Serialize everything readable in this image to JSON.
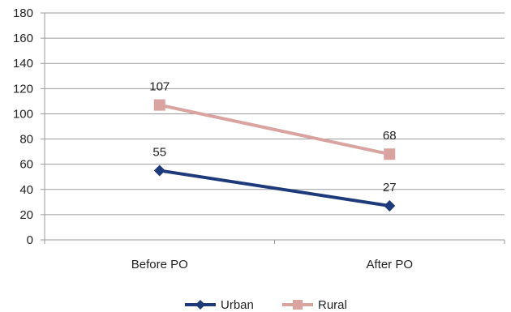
{
  "chart_data": {
    "type": "line",
    "categories": [
      "Before PO",
      "After PO"
    ],
    "ylim": [
      0,
      180
    ],
    "yticks": [
      0,
      20,
      40,
      60,
      80,
      100,
      120,
      140,
      160,
      180
    ],
    "grid": true,
    "legend_position": "bottom",
    "series": [
      {
        "name": "Urban",
        "values": [
          55,
          27
        ],
        "color": "#1f3a7a",
        "marker": "diamond",
        "labels": [
          "55",
          "27"
        ]
      },
      {
        "name": "Rural",
        "values": [
          107,
          68
        ],
        "color": "#d9a3a0",
        "marker": "square",
        "labels": [
          "107",
          "68"
        ]
      }
    ]
  }
}
